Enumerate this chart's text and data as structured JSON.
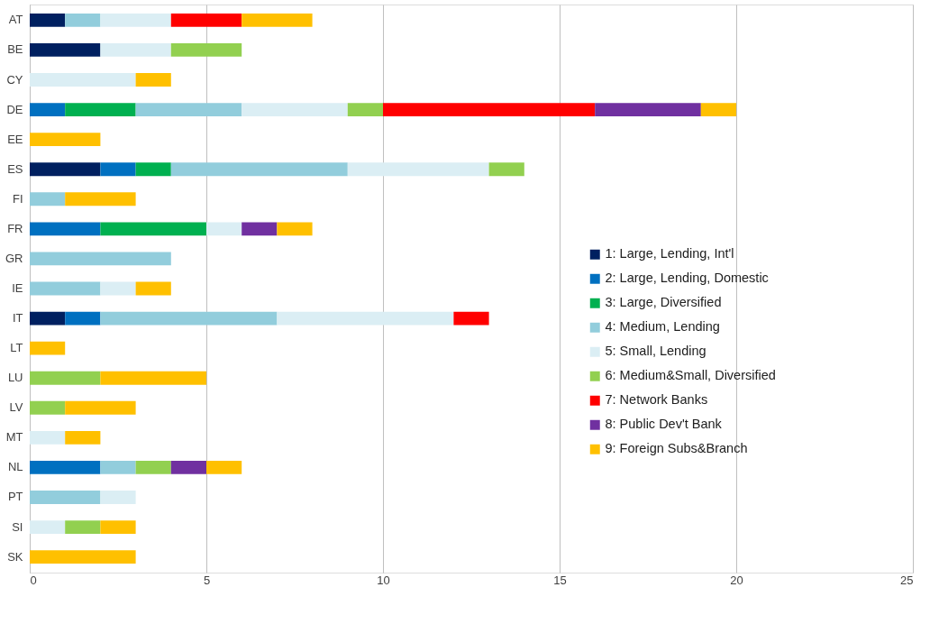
{
  "chart_data": {
    "type": "bar",
    "orientation": "horizontal",
    "stacked": true,
    "categories": [
      "AT",
      "BE",
      "CY",
      "DE",
      "EE",
      "ES",
      "FI",
      "FR",
      "GR",
      "IE",
      "IT",
      "LT",
      "LU",
      "LV",
      "MT",
      "NL",
      "PT",
      "SI",
      "SK"
    ],
    "series": [
      {
        "name": "1: Large, Lending, Int'l",
        "color": "#002060",
        "values": [
          1,
          2,
          null,
          null,
          null,
          2,
          null,
          null,
          null,
          null,
          1,
          null,
          null,
          null,
          null,
          null,
          null,
          null,
          null
        ]
      },
      {
        "name": "2: Large, Lending, Domestic",
        "color": "#0070c0",
        "values": [
          null,
          null,
          null,
          1,
          null,
          1,
          null,
          2,
          null,
          null,
          1,
          null,
          null,
          null,
          null,
          2,
          null,
          null,
          null
        ]
      },
      {
        "name": "3: Large, Diversified",
        "color": "#00b050",
        "values": [
          null,
          null,
          null,
          2,
          null,
          1,
          null,
          3,
          null,
          null,
          null,
          null,
          null,
          null,
          null,
          null,
          null,
          null,
          null
        ]
      },
      {
        "name": "4: Medium, Lending",
        "color": "#92cddc",
        "values": [
          1,
          null,
          null,
          3,
          null,
          5,
          1,
          null,
          4,
          2,
          5,
          null,
          null,
          null,
          null,
          1,
          2,
          null,
          null
        ]
      },
      {
        "name": "5: Small, Lending",
        "color": "#dbeef4",
        "values": [
          2,
          2,
          3,
          3,
          null,
          4,
          null,
          1,
          null,
          1,
          5,
          null,
          null,
          null,
          1,
          null,
          1,
          1,
          null
        ]
      },
      {
        "name": "6: Medium&Small, Diversified",
        "color": "#92d050",
        "values": [
          null,
          2,
          null,
          1,
          null,
          1,
          null,
          null,
          null,
          null,
          null,
          null,
          2,
          1,
          null,
          1,
          null,
          1,
          null
        ]
      },
      {
        "name": "7: Network Banks",
        "color": "#ff0000",
        "values": [
          2,
          null,
          null,
          6,
          null,
          null,
          null,
          null,
          null,
          null,
          1,
          null,
          null,
          null,
          null,
          null,
          null,
          null,
          null
        ]
      },
      {
        "name": "8: Public Dev't Bank",
        "color": "#7030a0",
        "values": [
          null,
          null,
          null,
          3,
          null,
          null,
          null,
          1,
          null,
          null,
          null,
          null,
          null,
          null,
          null,
          1,
          null,
          null,
          null
        ]
      },
      {
        "name": "9: Foreign Subs&Branch",
        "color": "#ffc000",
        "values": [
          2,
          null,
          1,
          1,
          2,
          null,
          2,
          1,
          null,
          1,
          null,
          1,
          3,
          2,
          1,
          1,
          null,
          1,
          3
        ]
      }
    ],
    "xlim": [
      0,
      25
    ],
    "xticks": [
      0,
      5,
      10,
      15,
      20,
      25
    ],
    "grid": "x",
    "legend": "right"
  }
}
